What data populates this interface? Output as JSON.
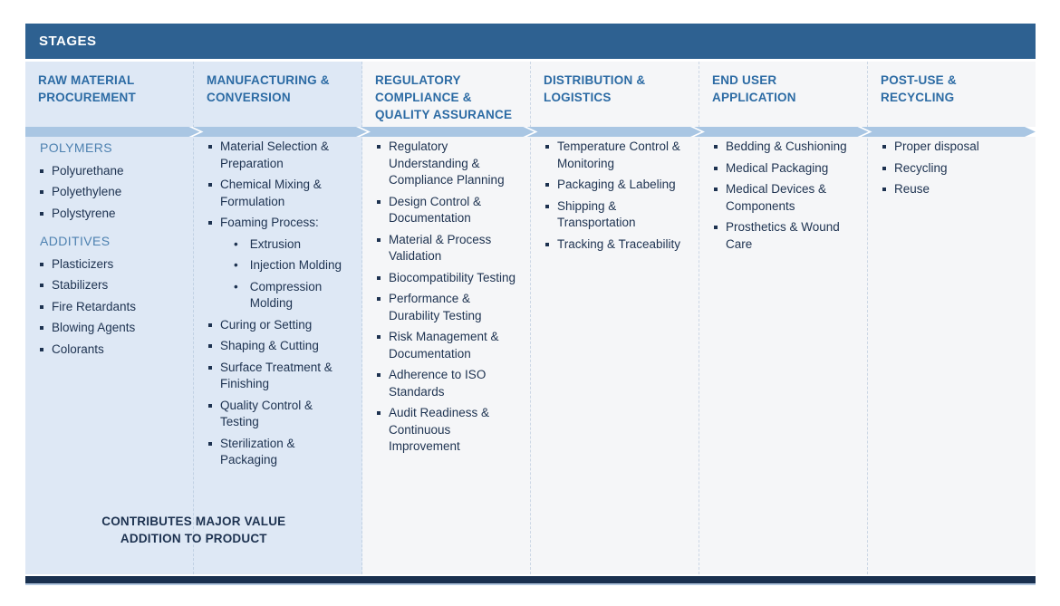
{
  "palette": {
    "header_bar_bg": "#2E6191",
    "header_bar_text": "#FFFFFF",
    "column_title_color": "#2C6BA4",
    "subheading_color": "#4D81B0",
    "body_text_color": "#1D3250",
    "highlight_column_bg": "#DEE8F5",
    "plain_column_bg": "#F5F6F8",
    "arrow_color": "#A9C6E3",
    "bottom_bar_bg": "#19304F"
  },
  "stages_bar": {
    "label": "STAGES"
  },
  "value_note": {
    "text": "CONTRIBUTES MAJOR VALUE ADDITION TO PRODUCT"
  },
  "columns": [
    {
      "id": "raw-material-procurement",
      "title": "RAW MATERIAL PROCUREMENT",
      "highlight": true,
      "entries": [
        {
          "kind": "subheading",
          "text": "POLYMERS"
        },
        {
          "kind": "bullet",
          "text": "Polyurethane"
        },
        {
          "kind": "bullet",
          "text": "Polyethylene"
        },
        {
          "kind": "bullet",
          "text": "Polystyrene"
        },
        {
          "kind": "subheading",
          "text": "ADDITIVES"
        },
        {
          "kind": "bullet",
          "text": "Plasticizers"
        },
        {
          "kind": "bullet",
          "text": "Stabilizers"
        },
        {
          "kind": "bullet",
          "text": "Fire Retardants"
        },
        {
          "kind": "bullet",
          "text": "Blowing Agents"
        },
        {
          "kind": "bullet",
          "text": "Colorants"
        }
      ]
    },
    {
      "id": "manufacturing-conversion",
      "title": "MANUFACTURING & CONVERSION",
      "highlight": true,
      "entries": [
        {
          "kind": "bullet",
          "text": "Material Selection & Preparation"
        },
        {
          "kind": "bullet",
          "text": "Chemical Mixing & Formulation"
        },
        {
          "kind": "bullet",
          "text": "Foaming Process:"
        },
        {
          "kind": "subbullet",
          "text": "Extrusion"
        },
        {
          "kind": "subbullet",
          "text": "Injection Molding"
        },
        {
          "kind": "subbullet",
          "text": "Compression Molding"
        },
        {
          "kind": "bullet",
          "text": "Curing or Setting"
        },
        {
          "kind": "bullet",
          "text": "Shaping & Cutting"
        },
        {
          "kind": "bullet",
          "text": "Surface Treatment & Finishing"
        },
        {
          "kind": "bullet",
          "text": "Quality Control & Testing"
        },
        {
          "kind": "bullet",
          "text": "Sterilization & Packaging"
        }
      ]
    },
    {
      "id": "regulatory-compliance-quality-assurance",
      "title": "REGULATORY COMPLIANCE & QUALITY ASSURANCE",
      "highlight": false,
      "entries": [
        {
          "kind": "bullet",
          "text": "Regulatory Understanding & Compliance Planning"
        },
        {
          "kind": "bullet",
          "text": "Design Control & Documentation"
        },
        {
          "kind": "bullet",
          "text": "Material & Process Validation"
        },
        {
          "kind": "bullet",
          "text": "Biocompatibility Testing"
        },
        {
          "kind": "bullet",
          "text": "Performance & Durability Testing"
        },
        {
          "kind": "bullet",
          "text": "Risk Management & Documentation"
        },
        {
          "kind": "bullet",
          "text": "Adherence to ISO Standards"
        },
        {
          "kind": "bullet",
          "text": "Audit Readiness & Continuous Improvement"
        }
      ]
    },
    {
      "id": "distribution-logistics",
      "title": "DISTRIBUTION & LOGISTICS",
      "highlight": false,
      "entries": [
        {
          "kind": "bullet",
          "text": "Temperature Control & Monitoring"
        },
        {
          "kind": "bullet",
          "text": "Packaging & Labeling"
        },
        {
          "kind": "bullet",
          "text": "Shipping & Transportation"
        },
        {
          "kind": "bullet",
          "text": "Tracking & Traceability"
        }
      ]
    },
    {
      "id": "end-user-application",
      "title": "END USER APPLICATION",
      "highlight": false,
      "entries": [
        {
          "kind": "bullet",
          "text": "Bedding & Cushioning"
        },
        {
          "kind": "bullet",
          "text": "Medical Packaging"
        },
        {
          "kind": "bullet",
          "text": "Medical Devices & Components"
        },
        {
          "kind": "bullet",
          "text": "Prosthetics & Wound Care"
        }
      ]
    },
    {
      "id": "post-use-recycling",
      "title": "POST-USE & RECYCLING",
      "highlight": false,
      "entries": [
        {
          "kind": "bullet",
          "text": "Proper disposal"
        },
        {
          "kind": "bullet",
          "text": "Recycling"
        },
        {
          "kind": "bullet",
          "text": "Reuse"
        }
      ]
    }
  ]
}
